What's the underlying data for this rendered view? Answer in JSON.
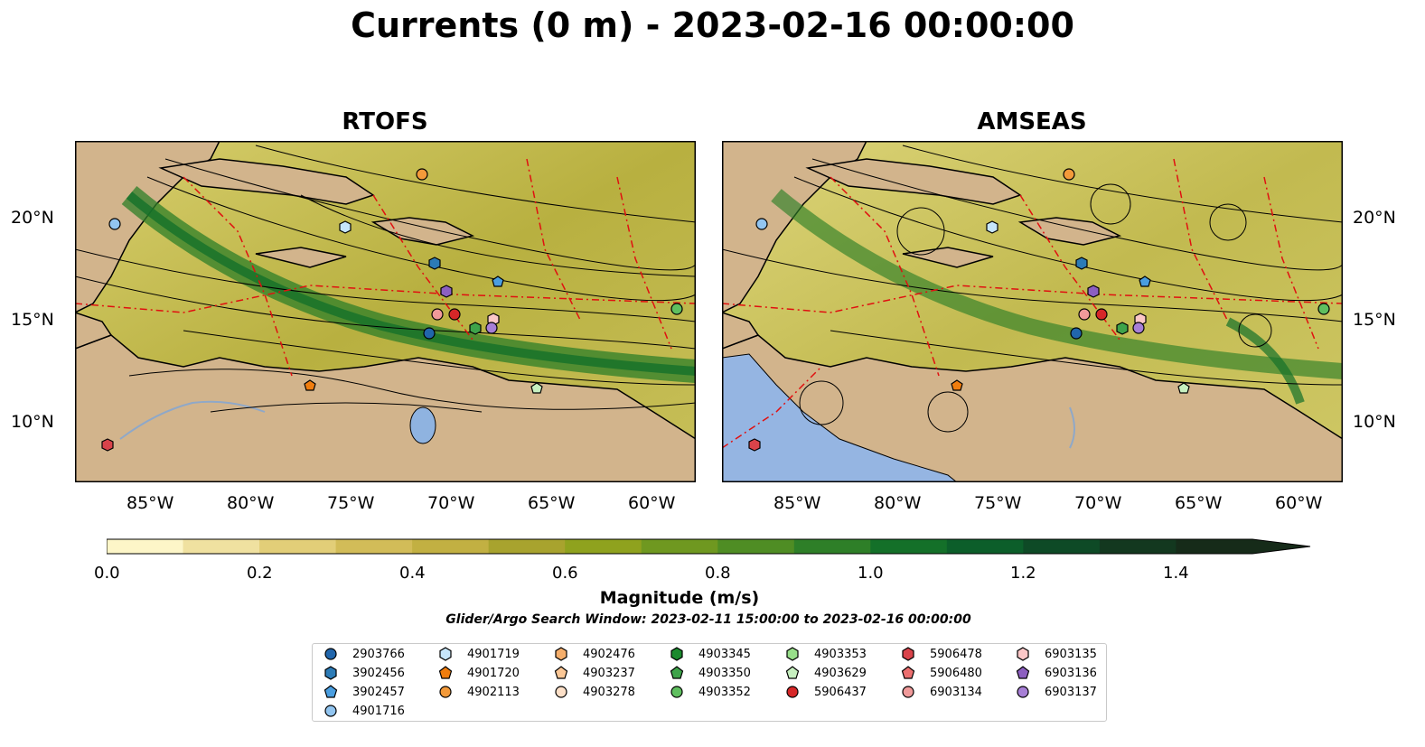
{
  "title": "Currents (0 m) - 2023-02-16 00:00:00",
  "panels": [
    {
      "title": "RTOFS"
    },
    {
      "title": "AMSEAS"
    }
  ],
  "lon_ticks": [
    "85°W",
    "80°W",
    "75°W",
    "70°W",
    "65°W",
    "60°W"
  ],
  "lat_ticks": [
    "20°N",
    "15°N",
    "10°N"
  ],
  "colorbar": {
    "label": "Magnitude (m/s)",
    "ticks": [
      "0.0",
      "0.2",
      "0.4",
      "0.6",
      "0.8",
      "1.0",
      "1.2",
      "1.4"
    ],
    "min": 0.0,
    "max": 1.5,
    "step": 0.1,
    "extend": "max",
    "colors": [
      "#fdf6c8",
      "#f0e1a0",
      "#e2ce78",
      "#d2bc58",
      "#c2b042",
      "#a8a32e",
      "#8fa21e",
      "#6f9820",
      "#4f8d24",
      "#2e7f28",
      "#147029",
      "#0c5e2a",
      "#0e4a26",
      "#13381f",
      "#162b19"
    ]
  },
  "search_window": "Glider/Argo Search Window: 2023-02-11 15:00:00 to 2023-02-16 00:00:00",
  "legend": [
    {
      "id": "2903766",
      "marker": "circle",
      "color": "#2166ac"
    },
    {
      "id": "3902456",
      "marker": "hexagon",
      "color": "#2c7bb6"
    },
    {
      "id": "3902457",
      "marker": "pentagon",
      "color": "#4a9ee0"
    },
    {
      "id": "4901716",
      "marker": "circle",
      "color": "#92c5f0"
    },
    {
      "id": "4901719",
      "marker": "hexagon",
      "color": "#c6e6fb"
    },
    {
      "id": "4901720",
      "marker": "pentagon",
      "color": "#f07d0e"
    },
    {
      "id": "4902113",
      "marker": "circle",
      "color": "#f39a3a"
    },
    {
      "id": "4902476",
      "marker": "hexagon",
      "color": "#f5ae6b"
    },
    {
      "id": "4903237",
      "marker": "pentagon",
      "color": "#fbc796"
    },
    {
      "id": "4903278",
      "marker": "circle",
      "color": "#fde0c8"
    },
    {
      "id": "4903345",
      "marker": "hexagon",
      "color": "#1b8a2e"
    },
    {
      "id": "4903350",
      "marker": "pentagon",
      "color": "#3ea34a"
    },
    {
      "id": "4903352",
      "marker": "circle",
      "color": "#5fbf5f"
    },
    {
      "id": "4903353",
      "marker": "hexagon",
      "color": "#98df8a"
    },
    {
      "id": "4903629",
      "marker": "pentagon",
      "color": "#c7f0c0"
    },
    {
      "id": "5906437",
      "marker": "circle",
      "color": "#d62728"
    },
    {
      "id": "5906478",
      "marker": "hexagon",
      "color": "#d9434a"
    },
    {
      "id": "5906480",
      "marker": "pentagon",
      "color": "#ec6f6f"
    },
    {
      "id": "6903134",
      "marker": "circle",
      "color": "#f09a9a"
    },
    {
      "id": "6903135",
      "marker": "hexagon",
      "color": "#fbc7c7"
    },
    {
      "id": "6903136",
      "marker": "pentagon",
      "color": "#8c5fc0"
    },
    {
      "id": "6903137",
      "marker": "circle",
      "color": "#a77fd6"
    }
  ]
}
